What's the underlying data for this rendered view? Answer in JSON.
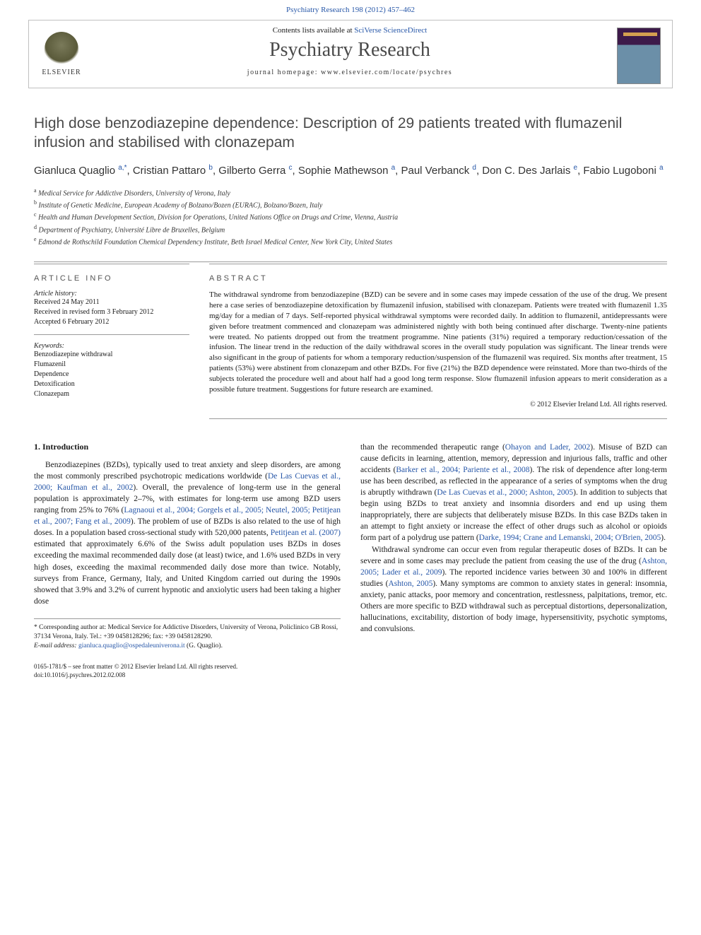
{
  "top_citation": "Psychiatry Research 198 (2012) 457–462",
  "header": {
    "contents_prefix": "Contents lists available at ",
    "contents_link": "SciVerse ScienceDirect",
    "journal_title": "Psychiatry Research",
    "homepage_label": "journal homepage: www.elsevier.com/locate/psychres",
    "publisher": "ELSEVIER"
  },
  "article": {
    "title": "High dose benzodiazepine dependence: Description of 29 patients treated with flumazenil infusion and stabilised with clonazepam",
    "authors_html": "Gianluca Quaglio <a class=\"sup\" href=\"#\">a,</a><a class=\"sup\" href=\"#\">*</a>, Cristian Pattaro <a class=\"sup\" href=\"#\">b</a>, Gilberto Gerra <a class=\"sup\" href=\"#\">c</a>, Sophie Mathewson <a class=\"sup\" href=\"#\">a</a>, Paul Verbanck <a class=\"sup\" href=\"#\">d</a>, Don C. Des Jarlais <a class=\"sup\" href=\"#\">e</a>, Fabio Lugoboni <a class=\"sup\" href=\"#\">a</a>",
    "affiliations": [
      {
        "sup": "a",
        "text": "Medical Service for Addictive Disorders, University of Verona, Italy"
      },
      {
        "sup": "b",
        "text": "Institute of Genetic Medicine, European Academy of Bolzano/Bozen (EURAC), Bolzano/Bozen, Italy"
      },
      {
        "sup": "c",
        "text": "Health and Human Development Section, Division for Operations, United Nations Office on Drugs and Crime, Vienna, Austria"
      },
      {
        "sup": "d",
        "text": "Department of Psychiatry, Université Libre de Bruxelles, Belgium"
      },
      {
        "sup": "e",
        "text": "Edmond de Rothschild Foundation Chemical Dependency Institute, Beth Israel Medical Center, New York City, United States"
      }
    ]
  },
  "info": {
    "heading": "ARTICLE INFO",
    "history_label": "Article history:",
    "received": "Received 24 May 2011",
    "revised": "Received in revised form 3 February 2012",
    "accepted": "Accepted 6 February 2012",
    "keywords_label": "Keywords:",
    "keywords": [
      "Benzodiazepine withdrawal",
      "Flumazenil",
      "Dependence",
      "Detoxification",
      "Clonazepam"
    ]
  },
  "abstract": {
    "heading": "ABSTRACT",
    "text": "The withdrawal syndrome from benzodiazepine (BZD) can be severe and in some cases may impede cessation of the use of the drug. We present here a case series of benzodiazepine detoxification by flumazenil infusion, stabilised with clonazepam. Patients were treated with flumazenil 1.35 mg/day for a median of 7 days. Self-reported physical withdrawal symptoms were recorded daily. In addition to flumazenil, antidepressants were given before treatment commenced and clonazepam was administered nightly with both being continued after discharge. Twenty-nine patients were treated. No patients dropped out from the treatment programme. Nine patients (31%) required a temporary reduction/cessation of the infusion. The linear trend in the reduction of the daily withdrawal scores in the overall study population was significant. The linear trends were also significant in the group of patients for whom a temporary reduction/suspension of the flumazenil was required. Six months after treatment, 15 patients (53%) were abstinent from clonazepam and other BZDs. For five (21%) the BZD dependence were reinstated. More than two-thirds of the subjects tolerated the procedure well and about half had a good long term response. Slow flumazenil infusion appears to merit consideration as a possible future treatment. Suggestions for future research are examined.",
    "copyright": "© 2012 Elsevier Ireland Ltd. All rights reserved."
  },
  "body": {
    "section_heading": "1. Introduction",
    "col1": "Benzodiazepines (BZDs), typically used to treat anxiety and sleep disorders, are among the most commonly prescribed psychotropic medications worldwide (<a href=\"#\">De Las Cuevas et al., 2000; Kaufman et al., 2002</a>). Overall, the prevalence of long-term use in the general population is approximately 2–7%, with estimates for long-term use among BZD users ranging from 25% to 76% (<a href=\"#\">Lagnaoui et al., 2004; Gorgels et al., 2005; Neutel, 2005; Petitjean et al., 2007; Fang et al., 2009</a>). The problem of use of BZDs is also related to the use of high doses. In a population based cross-sectional study with 520,000 patents, <a href=\"#\">Petitjean et al. (2007)</a> estimated that approximately 6.6% of the Swiss adult population uses BZDs in doses exceeding the maximal recommended daily dose (at least) twice, and 1.6% used BZDs in very high doses, exceeding the maximal recommended daily dose more than twice. Notably, surveys from France, Germany, Italy, and United Kingdom carried out during the 1990s showed that 3.9% and 3.2% of current hypnotic and anxiolytic users had been taking a higher dose",
    "col2_p1": "than the recommended therapeutic range (<a href=\"#\">Ohayon and Lader, 2002</a>). Misuse of BZD can cause deficits in learning, attention, memory, depression and injurious falls, traffic and other accidents (<a href=\"#\">Barker et al., 2004; Pariente et al., 2008</a>). The risk of dependence after long-term use has been described, as reflected in the appearance of a series of symptoms when the drug is abruptly withdrawn (<a href=\"#\">De Las Cuevas et al., 2000; Ashton, 2005</a>). In addition to subjects that begin using BZDs to treat anxiety and insomnia disorders and end up using them inappropriately, there are subjects that deliberately misuse BZDs. In this case BZDs taken in an attempt to fight anxiety or increase the effect of other drugs such as alcohol or opioids form part of a polydrug use pattern (<a href=\"#\">Darke, 1994; Crane and Lemanski, 2004; O'Brien, 2005</a>).",
    "col2_p2": "Withdrawal syndrome can occur even from regular therapeutic doses of BZDs. It can be severe and in some cases may preclude the patient from ceasing the use of the drug (<a href=\"#\">Ashton, 2005; Lader et al., 2009</a>). The reported incidence varies between 30 and 100% in different studies (<a href=\"#\">Ashton, 2005</a>). Many symptoms are common to anxiety states in general: insomnia, anxiety, panic attacks, poor memory and concentration, restlessness, palpitations, tremor, etc. Others are more specific to BZD withdrawal such as perceptual distortions, depersonalization, hallucinations, excitability, distortion of body image, hypersensitivity, psychotic symptoms, and convulsions."
  },
  "footnote": {
    "corresponding": "* Corresponding author at: Medical Service for Addictive Disorders, University of Verona, Policlinico GB Rossi, 37134 Verona, Italy. Tel.: +39 0458128296; fax: +39 0458128290.",
    "email_label": "E-mail address: ",
    "email": "gianluca.quaglio@ospedaleuniverona.it",
    "email_suffix": " (G. Quaglio)."
  },
  "bottom": {
    "line1": "0165-1781/$ – see front matter © 2012 Elsevier Ireland Ltd. All rights reserved.",
    "line2": "doi:10.1016/j.psychres.2012.02.008"
  },
  "styling": {
    "link_color": "#2757a8",
    "text_color": "#1a1a1a",
    "heading_color": "#4a4a4a",
    "border_color": "#9a9a9a",
    "body_font_size": 11.5,
    "abstract_font_size": 11,
    "title_font_size": 21,
    "journal_title_font_size": 28
  }
}
